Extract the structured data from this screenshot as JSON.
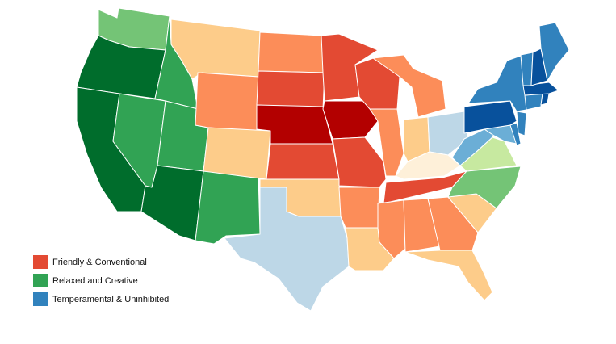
{
  "legend": [
    {
      "label": "Friendly & Conventional",
      "color": "#e34a33"
    },
    {
      "label": "Relaxed and Creative",
      "color": "#31a354"
    },
    {
      "label": "Temperamental & Uninhibited",
      "color": "#3182bd"
    }
  ],
  "states": [
    {
      "id": "WA",
      "fill": "#74c476"
    },
    {
      "id": "OR",
      "fill": "#006d2c"
    },
    {
      "id": "CA",
      "fill": "#006d2c"
    },
    {
      "id": "NV",
      "fill": "#31a354"
    },
    {
      "id": "ID",
      "fill": "#31a354"
    },
    {
      "id": "UT",
      "fill": "#31a354"
    },
    {
      "id": "AZ",
      "fill": "#006d2c"
    },
    {
      "id": "NM",
      "fill": "#31a354"
    },
    {
      "id": "MT",
      "fill": "#fdcc8a"
    },
    {
      "id": "WY",
      "fill": "#fc8d59"
    },
    {
      "id": "CO",
      "fill": "#fdcc8a"
    },
    {
      "id": "ND",
      "fill": "#fc8d59"
    },
    {
      "id": "SD",
      "fill": "#e34a33"
    },
    {
      "id": "NE",
      "fill": "#b30000"
    },
    {
      "id": "KS",
      "fill": "#e34a33"
    },
    {
      "id": "OK",
      "fill": "#fdcc8a"
    },
    {
      "id": "TX",
      "fill": "#bdd7e7"
    },
    {
      "id": "MN",
      "fill": "#e34a33"
    },
    {
      "id": "IA",
      "fill": "#b30000"
    },
    {
      "id": "MO",
      "fill": "#e34a33"
    },
    {
      "id": "AR",
      "fill": "#fc8d59"
    },
    {
      "id": "LA",
      "fill": "#fdcc8a"
    },
    {
      "id": "WI",
      "fill": "#e34a33"
    },
    {
      "id": "IL",
      "fill": "#fc8d59"
    },
    {
      "id": "MI",
      "fill": "#fc8d59"
    },
    {
      "id": "IN",
      "fill": "#fdcc8a"
    },
    {
      "id": "OH",
      "fill": "#bdd7e7"
    },
    {
      "id": "KY",
      "fill": "#fef0d9"
    },
    {
      "id": "TN",
      "fill": "#e34a33"
    },
    {
      "id": "MS",
      "fill": "#fc8d59"
    },
    {
      "id": "AL",
      "fill": "#fc8d59"
    },
    {
      "id": "GA",
      "fill": "#fc8d59"
    },
    {
      "id": "FL",
      "fill": "#fdcc8a"
    },
    {
      "id": "SC",
      "fill": "#fdcc8a"
    },
    {
      "id": "NC",
      "fill": "#74c476"
    },
    {
      "id": "VA",
      "fill": "#c7e9a0"
    },
    {
      "id": "WV",
      "fill": "#6baed6"
    },
    {
      "id": "PA",
      "fill": "#08519c"
    },
    {
      "id": "NY",
      "fill": "#3182bd"
    },
    {
      "id": "NJ",
      "fill": "#3182bd"
    },
    {
      "id": "DE",
      "fill": "#3182bd"
    },
    {
      "id": "MD",
      "fill": "#6baed6"
    },
    {
      "id": "CT",
      "fill": "#3182bd"
    },
    {
      "id": "RI",
      "fill": "#08519c"
    },
    {
      "id": "MA",
      "fill": "#08519c"
    },
    {
      "id": "VT",
      "fill": "#3182bd"
    },
    {
      "id": "NH",
      "fill": "#08519c"
    },
    {
      "id": "ME",
      "fill": "#3182bd"
    }
  ]
}
